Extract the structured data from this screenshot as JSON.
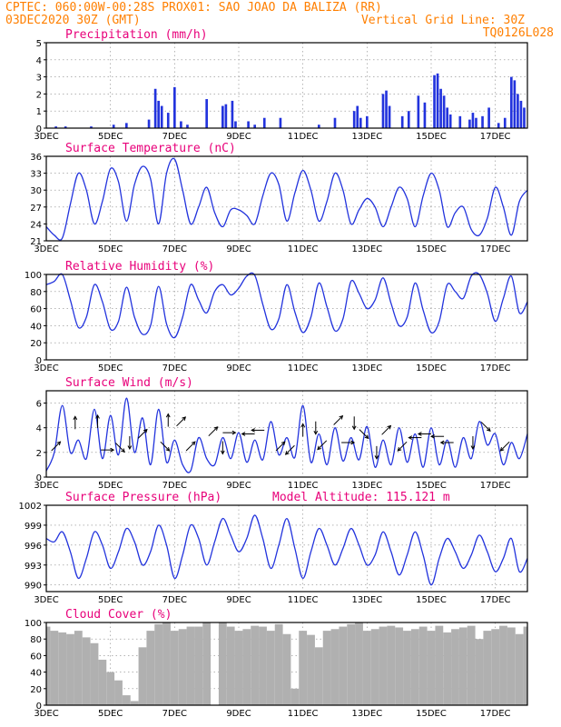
{
  "header": {
    "line1": "CPTEC:   060:00W-00:28S   PROX01: SAO JOAO DA BALIZA (RR)",
    "line2_left": "03DEC2020 30Z (GMT)",
    "line2_right": "Vertical Grid Line: 30Z",
    "line3_right": "TQ0126L028"
  },
  "colors": {
    "header": "#ff7f00",
    "panel_title": "#e8007a",
    "series": "#2233dd",
    "cloud": "#b0b0b0",
    "grid": "#888888"
  },
  "chart_data": [
    {
      "type": "bar",
      "title": "Precipitation (mm/h)",
      "ylim": [
        0,
        5
      ],
      "yticks": [
        "0",
        "1",
        "2",
        "3",
        "4",
        "5"
      ],
      "xticks": [
        "3DEC",
        "5DEC",
        "7DEC",
        "9DEC",
        "11DEC",
        "13DEC",
        "15DEC",
        "17DEC"
      ],
      "x_unit": "day of December 2020 (03DEC..18DEC)",
      "x": [
        3.3,
        3.6,
        4.4,
        5.1,
        5.5,
        6.2,
        6.4,
        6.5,
        6.6,
        6.8,
        7.0,
        7.2,
        7.4,
        8.0,
        8.5,
        8.6,
        8.8,
        8.9,
        9.3,
        9.5,
        9.8,
        10.3,
        11.5,
        12.0,
        12.6,
        12.7,
        12.8,
        13.0,
        13.5,
        13.6,
        13.7,
        14.1,
        14.3,
        14.6,
        14.8,
        15.1,
        15.2,
        15.3,
        15.4,
        15.5,
        15.6,
        15.9,
        16.2,
        16.3,
        16.4,
        16.6,
        16.8,
        17.1,
        17.3,
        17.5,
        17.6,
        17.7,
        17.8,
        17.9
      ],
      "values": [
        0.1,
        0.1,
        0.1,
        0.2,
        0.3,
        0.5,
        2.3,
        1.6,
        1.3,
        0.9,
        2.4,
        0.4,
        0.2,
        1.7,
        1.3,
        1.4,
        1.6,
        0.4,
        0.4,
        0.2,
        0.6,
        0.6,
        0.2,
        0.6,
        1.0,
        1.3,
        0.6,
        0.7,
        2.0,
        2.2,
        1.3,
        0.7,
        1.0,
        1.9,
        1.5,
        3.1,
        3.2,
        2.3,
        1.9,
        1.2,
        0.8,
        0.7,
        0.5,
        0.9,
        0.6,
        0.7,
        1.2,
        0.3,
        0.6,
        3.0,
        2.8,
        2.0,
        1.6,
        1.2
      ]
    },
    {
      "type": "line",
      "title": "Surface Temperature (nC)",
      "ylim": [
        21,
        36
      ],
      "yticks": [
        "21",
        "24",
        "27",
        "30",
        "33",
        "36"
      ],
      "xticks": [
        "3DEC",
        "5DEC",
        "7DEC",
        "9DEC",
        "11DEC",
        "13DEC",
        "15DEC",
        "17DEC"
      ],
      "x": [
        3.0,
        3.25,
        3.5,
        3.75,
        4.0,
        4.25,
        4.5,
        4.75,
        5.0,
        5.25,
        5.5,
        5.75,
        6.0,
        6.25,
        6.5,
        6.75,
        7.0,
        7.25,
        7.5,
        7.75,
        8.0,
        8.25,
        8.5,
        8.75,
        9.0,
        9.25,
        9.5,
        9.75,
        10.0,
        10.25,
        10.5,
        10.75,
        11.0,
        11.25,
        11.5,
        11.75,
        12.0,
        12.25,
        12.5,
        12.75,
        13.0,
        13.25,
        13.5,
        13.75,
        14.0,
        14.25,
        14.5,
        14.75,
        15.0,
        15.25,
        15.5,
        15.75,
        16.0,
        16.25,
        16.5,
        16.75,
        17.0,
        17.25,
        17.5,
        17.75,
        18.0
      ],
      "values": [
        23.5,
        22.0,
        21.5,
        27.5,
        33.0,
        30.0,
        24.0,
        28.0,
        33.8,
        31.5,
        24.5,
        31.0,
        34.2,
        32.0,
        24.0,
        33.0,
        35.5,
        30.0,
        24.0,
        27.0,
        30.5,
        26.0,
        23.5,
        26.5,
        26.5,
        25.5,
        24.0,
        29.0,
        33.0,
        31.0,
        24.5,
        29.5,
        33.5,
        30.0,
        24.5,
        28.0,
        33.0,
        30.0,
        24.0,
        26.5,
        28.5,
        27.0,
        23.5,
        27.0,
        30.5,
        28.5,
        23.5,
        29.0,
        33.0,
        30.0,
        23.5,
        26.0,
        27.0,
        23.0,
        22.0,
        25.0,
        30.5,
        27.0,
        22.0,
        28.0,
        30.0
      ]
    },
    {
      "type": "line",
      "title": "Relative Humidity (%)",
      "ylim": [
        0,
        100
      ],
      "yticks": [
        "0",
        "20",
        "40",
        "60",
        "80",
        "100"
      ],
      "xticks": [
        "3DEC",
        "5DEC",
        "7DEC",
        "9DEC",
        "11DEC",
        "13DEC",
        "15DEC",
        "17DEC"
      ],
      "x": [
        3.0,
        3.25,
        3.5,
        3.75,
        4.0,
        4.25,
        4.5,
        4.75,
        5.0,
        5.25,
        5.5,
        5.75,
        6.0,
        6.25,
        6.5,
        6.75,
        7.0,
        7.25,
        7.5,
        7.75,
        8.0,
        8.25,
        8.5,
        8.75,
        9.0,
        9.25,
        9.5,
        9.75,
        10.0,
        10.25,
        10.5,
        10.75,
        11.0,
        11.25,
        11.5,
        11.75,
        12.0,
        12.25,
        12.5,
        12.75,
        13.0,
        13.25,
        13.5,
        13.75,
        14.0,
        14.25,
        14.5,
        14.75,
        15.0,
        15.25,
        15.5,
        15.75,
        16.0,
        16.25,
        16.5,
        16.75,
        17.0,
        17.25,
        17.5,
        17.75,
        18.0
      ],
      "values": [
        88,
        92,
        100,
        70,
        38,
        50,
        88,
        68,
        36,
        45,
        85,
        50,
        30,
        40,
        86,
        42,
        26,
        50,
        88,
        70,
        55,
        80,
        88,
        76,
        84,
        98,
        99,
        65,
        36,
        48,
        88,
        56,
        32,
        50,
        90,
        62,
        34,
        48,
        92,
        78,
        60,
        70,
        96,
        66,
        40,
        50,
        90,
        58,
        32,
        45,
        88,
        80,
        72,
        98,
        100,
        78,
        45,
        72,
        98,
        55,
        68
      ]
    },
    {
      "type": "line",
      "title": "Surface Wind (m/s)",
      "ylim": [
        0,
        7
      ],
      "yticks": [
        "0",
        "2",
        "4",
        "6"
      ],
      "xticks": [
        "3DEC",
        "5DEC",
        "7DEC",
        "9DEC",
        "11DEC",
        "13DEC",
        "15DEC",
        "17DEC"
      ],
      "x": [
        3.0,
        3.25,
        3.5,
        3.75,
        4.0,
        4.25,
        4.5,
        4.75,
        5.0,
        5.25,
        5.5,
        5.75,
        6.0,
        6.25,
        6.5,
        6.75,
        7.0,
        7.25,
        7.5,
        7.75,
        8.0,
        8.25,
        8.5,
        8.75,
        9.0,
        9.25,
        9.5,
        9.75,
        10.0,
        10.25,
        10.5,
        10.75,
        11.0,
        11.25,
        11.5,
        11.75,
        12.0,
        12.25,
        12.5,
        12.75,
        13.0,
        13.25,
        13.5,
        13.75,
        14.0,
        14.25,
        14.5,
        14.75,
        15.0,
        15.25,
        15.5,
        15.75,
        16.0,
        16.25,
        16.5,
        16.75,
        17.0,
        17.25,
        17.5,
        17.75,
        18.0
      ],
      "values": [
        0.5,
        2.0,
        5.8,
        2.0,
        3.0,
        1.5,
        5.5,
        1.5,
        5.0,
        1.8,
        6.4,
        2.0,
        4.8,
        1.0,
        5.5,
        1.2,
        3.0,
        1.0,
        0.5,
        3.2,
        1.5,
        1.0,
        3.2,
        1.5,
        3.6,
        1.2,
        3.0,
        1.4,
        4.5,
        1.8,
        3.2,
        1.6,
        5.8,
        1.2,
        3.5,
        1.0,
        4.0,
        1.3,
        3.2,
        1.4,
        4.1,
        0.8,
        3.0,
        1.0,
        4.0,
        1.2,
        3.5,
        0.8,
        4.0,
        1.0,
        3.0,
        0.8,
        3.2,
        1.5,
        4.5,
        2.6,
        3.5,
        1.0,
        2.8,
        1.5,
        3.5
      ],
      "arrow_rows": [
        {
          "x": [
            3.3,
            3.9,
            4.6,
            4.9,
            5.3,
            5.6,
            6.0,
            6.7,
            6.8,
            7.2,
            7.5
          ],
          "y": [
            2.5,
            4.4,
            4.5,
            2.2,
            2.4,
            2.8,
            3.5,
            2.5,
            4.6,
            4.5,
            2.5
          ],
          "dir": [
            "NE",
            "N",
            "N",
            "E",
            "SE",
            "S",
            "NE",
            "SE",
            "N",
            "NE",
            "NE"
          ]
        },
        {
          "x": [
            8.2,
            8.5,
            8.7,
            9.3,
            9.6,
            10.3,
            10.6,
            11.0,
            11.4,
            11.6,
            12.1,
            12.4,
            12.6,
            12.9,
            13.3,
            13.6,
            14.1,
            14.5,
            14.8,
            15.2,
            15.5,
            16.3,
            16.7,
            17.3
          ],
          "y": [
            3.7,
            2.4,
            3.6,
            3.5,
            3.8,
            2.5,
            2.2,
            3.8,
            4.0,
            2.6,
            4.6,
            2.8,
            4.4,
            3.5,
            2.0,
            3.8,
            2.5,
            3.2,
            3.5,
            3.3,
            2.8,
            2.8,
            4.1,
            2.5
          ],
          "dir": [
            "NE",
            "S",
            "E",
            "W",
            "W",
            "NE",
            "SW",
            "N",
            "S",
            "SW",
            "NE",
            "E",
            "S",
            "SE",
            "S",
            "NE",
            "SW",
            "W",
            "W",
            "W",
            "W",
            "S",
            "SE",
            "SW"
          ]
        }
      ]
    },
    {
      "type": "line",
      "title": "Surface Pressure (hPa)",
      "subtitle": "Model Altitude: 115.121 m",
      "ylim": [
        989,
        1002
      ],
      "yticks": [
        "990",
        "993",
        "996",
        "999",
        "1002"
      ],
      "xticks": [
        "3DEC",
        "5DEC",
        "7DEC",
        "9DEC",
        "11DEC",
        "13DEC",
        "15DEC",
        "17DEC"
      ],
      "x": [
        3.0,
        3.25,
        3.5,
        3.75,
        4.0,
        4.25,
        4.5,
        4.75,
        5.0,
        5.25,
        5.5,
        5.75,
        6.0,
        6.25,
        6.5,
        6.75,
        7.0,
        7.25,
        7.5,
        7.75,
        8.0,
        8.25,
        8.5,
        8.75,
        9.0,
        9.25,
        9.5,
        9.75,
        10.0,
        10.25,
        10.5,
        10.75,
        11.0,
        11.25,
        11.5,
        11.75,
        12.0,
        12.25,
        12.5,
        12.75,
        13.0,
        13.25,
        13.5,
        13.75,
        14.0,
        14.25,
        14.5,
        14.75,
        15.0,
        15.25,
        15.5,
        15.75,
        16.0,
        16.25,
        16.5,
        16.75,
        17.0,
        17.25,
        17.5,
        17.75,
        18.0
      ],
      "values": [
        997.0,
        996.5,
        998.0,
        995.0,
        991.0,
        994.0,
        998.0,
        996.0,
        992.5,
        995.0,
        998.5,
        996.5,
        993.0,
        995.0,
        999.0,
        996.0,
        991.0,
        994.5,
        999.0,
        997.0,
        993.0,
        996.5,
        1000.0,
        997.5,
        995.0,
        997.0,
        1000.5,
        997.0,
        992.5,
        996.0,
        1000.0,
        995.5,
        991.0,
        995.0,
        998.5,
        996.0,
        993.0,
        995.5,
        998.5,
        996.0,
        993.0,
        994.5,
        998.0,
        995.0,
        991.5,
        994.5,
        998.0,
        994.5,
        990.0,
        994.0,
        997.0,
        995.0,
        992.5,
        994.5,
        997.5,
        995.0,
        992.0,
        994.0,
        997.0,
        992.0,
        994.0
      ]
    },
    {
      "type": "bar",
      "title": "Cloud Cover (%)",
      "ylim": [
        0,
        100
      ],
      "yticks": [
        "0",
        "20",
        "40",
        "60",
        "80",
        "100"
      ],
      "xticks": [
        "3DEC",
        "5DEC",
        "7DEC",
        "9DEC",
        "11DEC",
        "13DEC",
        "15DEC",
        "17DEC"
      ],
      "x": [
        3.0,
        3.25,
        3.5,
        3.75,
        4.0,
        4.25,
        4.5,
        4.75,
        5.0,
        5.25,
        5.5,
        5.75,
        6.0,
        6.25,
        6.5,
        6.75,
        7.0,
        7.25,
        7.5,
        7.75,
        8.0,
        8.25,
        8.5,
        8.75,
        9.0,
        9.25,
        9.5,
        9.75,
        10.0,
        10.25,
        10.5,
        10.75,
        11.0,
        11.25,
        11.5,
        11.75,
        12.0,
        12.25,
        12.5,
        12.75,
        13.0,
        13.25,
        13.5,
        13.75,
        14.0,
        14.25,
        14.5,
        14.75,
        15.0,
        15.25,
        15.5,
        15.75,
        16.0,
        16.25,
        16.5,
        16.75,
        17.0,
        17.25,
        17.5,
        17.75,
        18.0
      ],
      "values": [
        95,
        90,
        88,
        86,
        90,
        82,
        75,
        55,
        40,
        30,
        12,
        5,
        70,
        90,
        98,
        100,
        90,
        92,
        95,
        95,
        100,
        0,
        100,
        95,
        90,
        92,
        96,
        95,
        90,
        98,
        86,
        20,
        90,
        85,
        70,
        90,
        92,
        95,
        98,
        100,
        90,
        92,
        95,
        96,
        94,
        90,
        92,
        95,
        90,
        96,
        88,
        92,
        94,
        96,
        80,
        90,
        92,
        96,
        94,
        86,
        95
      ]
    }
  ]
}
